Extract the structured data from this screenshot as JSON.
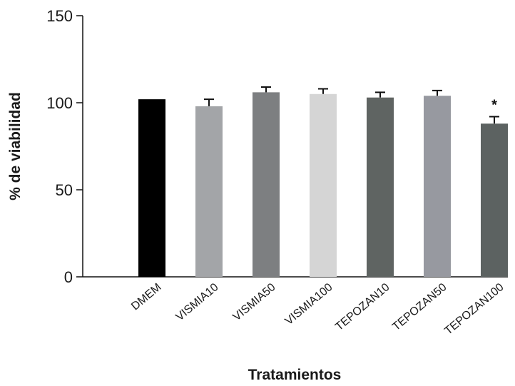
{
  "chart_data": {
    "type": "bar",
    "categories": [
      "DMEM",
      "VISMIA10",
      "VISMIA50",
      "VISMIA100",
      "TEPOZAN10",
      "TEPOZAN50",
      "TEPOZAN100"
    ],
    "values": [
      102,
      98,
      106,
      105,
      103,
      104,
      88
    ],
    "errors": [
      0,
      4,
      3,
      3,
      3,
      3,
      4
    ],
    "bar_colors": [
      "#000000",
      "#a3a5a8",
      "#7d7f81",
      "#d5d5d5",
      "#5f6462",
      "#9799a0",
      "#5c6261"
    ],
    "annotations": [
      {
        "category": "TEPOZAN100",
        "text": "*"
      }
    ],
    "xlabel": "Tratamientos",
    "ylabel": "% de viabilidad",
    "ylim": [
      0,
      150
    ],
    "yticks": [
      "0",
      "50",
      "100",
      "150"
    ],
    "grid": false
  }
}
